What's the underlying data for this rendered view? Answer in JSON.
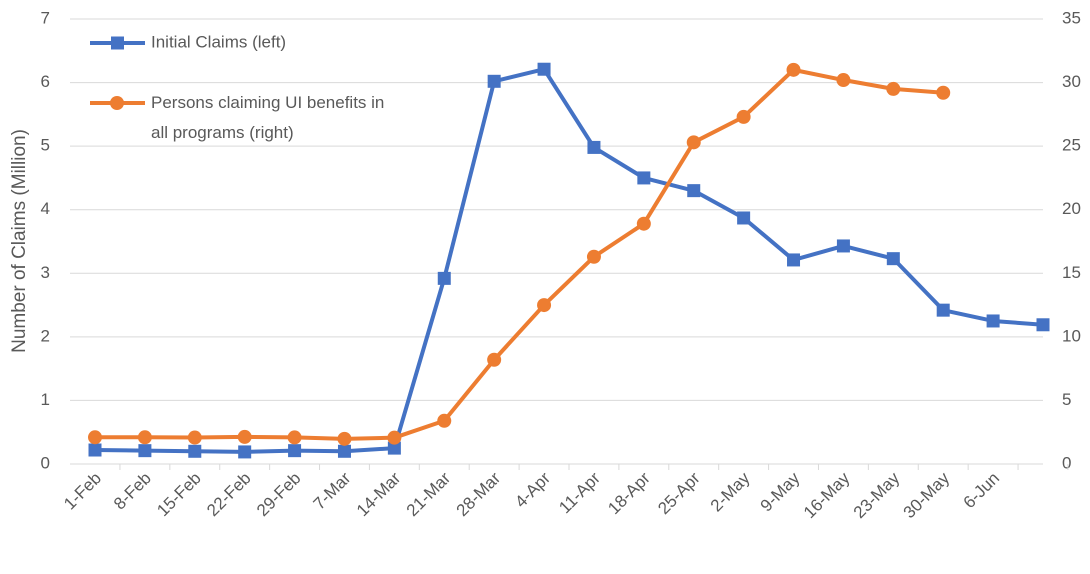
{
  "chart_data": {
    "type": "line",
    "y_label": "Number of Claims (Million)",
    "categories": [
      "1-Feb",
      "8-Feb",
      "15-Feb",
      "22-Feb",
      "29-Feb",
      "7-Mar",
      "14-Mar",
      "21-Mar",
      "28-Mar",
      "4-Apr",
      "11-Apr",
      "18-Apr",
      "25-Apr",
      "2-May",
      "9-May",
      "16-May",
      "23-May",
      "30-May",
      "6-Jun",
      null
    ],
    "series": [
      {
        "name": "Initial Claims (left)",
        "color": "#4472c4",
        "marker": "square",
        "values": [
          0.22,
          0.21,
          0.2,
          0.19,
          0.21,
          0.2,
          0.25,
          2.92,
          6.02,
          6.21,
          4.98,
          4.5,
          4.3,
          3.87,
          3.21,
          3.43,
          3.23,
          2.42,
          2.25,
          2.19
        ]
      },
      {
        "name": "Persons claiming UI benefits in all programs (right)",
        "color": "#ed7d31",
        "marker": "circle",
        "axis": "y2",
        "values": [
          2.1,
          2.1,
          2.08,
          2.13,
          2.09,
          1.98,
          2.07,
          3.4,
          8.2,
          12.5,
          16.3,
          18.9,
          25.3,
          27.3,
          31.0,
          30.2,
          29.5,
          29.2,
          null,
          null
        ]
      }
    ],
    "ylim": [
      0,
      7
    ],
    "yticks": [
      0,
      1,
      2,
      3,
      4,
      5,
      6,
      7
    ],
    "y2lim": [
      0,
      35
    ],
    "y2ticks": [
      0,
      5,
      10,
      15,
      20,
      25,
      30,
      35
    ],
    "grid": true
  }
}
